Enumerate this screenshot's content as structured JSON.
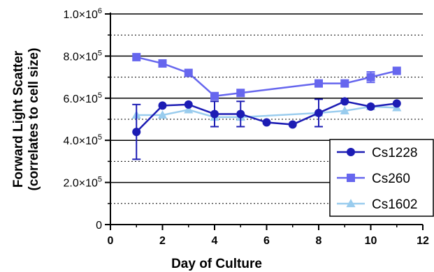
{
  "chart_data": {
    "type": "line",
    "xlabel": "Day of Culture",
    "ylabel_lines": [
      "Forward Light Scatter",
      "(correlates to cell size)"
    ],
    "xlim": [
      0,
      12
    ],
    "ylim": [
      0,
      1000000
    ],
    "x_ticks": [
      0,
      2,
      4,
      6,
      8,
      10,
      12
    ],
    "x_tick_labels": [
      "0",
      "2",
      "4",
      "6",
      "8",
      "10",
      "12"
    ],
    "y_ticks": [
      0,
      200000,
      400000,
      600000,
      800000,
      1000000
    ],
    "y_tick_labels": [
      {
        "base": "0",
        "exp": ""
      },
      {
        "base": "2.0×10",
        "exp": "5"
      },
      {
        "base": "4.0×10",
        "exp": "5"
      },
      {
        "base": "6.0×10",
        "exp": "5"
      },
      {
        "base": "8.0×10",
        "exp": "5"
      },
      {
        "base": "1.0×10",
        "exp": "6"
      }
    ],
    "gridlines_solid": [
      200000,
      400000,
      600000,
      800000,
      1000000
    ],
    "gridlines_dotted": [
      100000,
      300000,
      500000,
      700000,
      900000
    ],
    "legend_position": "bottom-right",
    "series": [
      {
        "name": "Cs1228",
        "marker": "circle",
        "color": "#1c1cb4",
        "x": [
          1,
          2,
          3,
          4,
          5,
          6,
          7,
          8,
          9,
          10,
          11
        ],
        "y": [
          440000,
          565000,
          570000,
          525000,
          525000,
          485000,
          475000,
          530000,
          585000,
          560000,
          575000
        ],
        "err": [
          130000,
          0,
          0,
          60000,
          60000,
          0,
          0,
          65000,
          0,
          0,
          0
        ]
      },
      {
        "name": "Cs260",
        "marker": "square",
        "color": "#6666ee",
        "x": [
          1,
          2,
          3,
          4,
          5,
          8,
          9,
          10,
          11
        ],
        "y": [
          795000,
          765000,
          720000,
          610000,
          625000,
          670000,
          670000,
          700000,
          730000
        ],
        "err": [
          0,
          0,
          0,
          0,
          0,
          0,
          0,
          25000,
          0
        ]
      },
      {
        "name": "Cs1602",
        "marker": "triangle",
        "color": "#99ccee",
        "x": [
          1,
          2,
          3,
          4,
          5,
          8,
          9,
          10,
          11
        ],
        "y": [
          520000,
          520000,
          545000,
          510000,
          510000,
          530000,
          540000,
          560000,
          555000
        ],
        "err": [
          0,
          0,
          0,
          0,
          0,
          0,
          0,
          0,
          0
        ]
      }
    ]
  }
}
